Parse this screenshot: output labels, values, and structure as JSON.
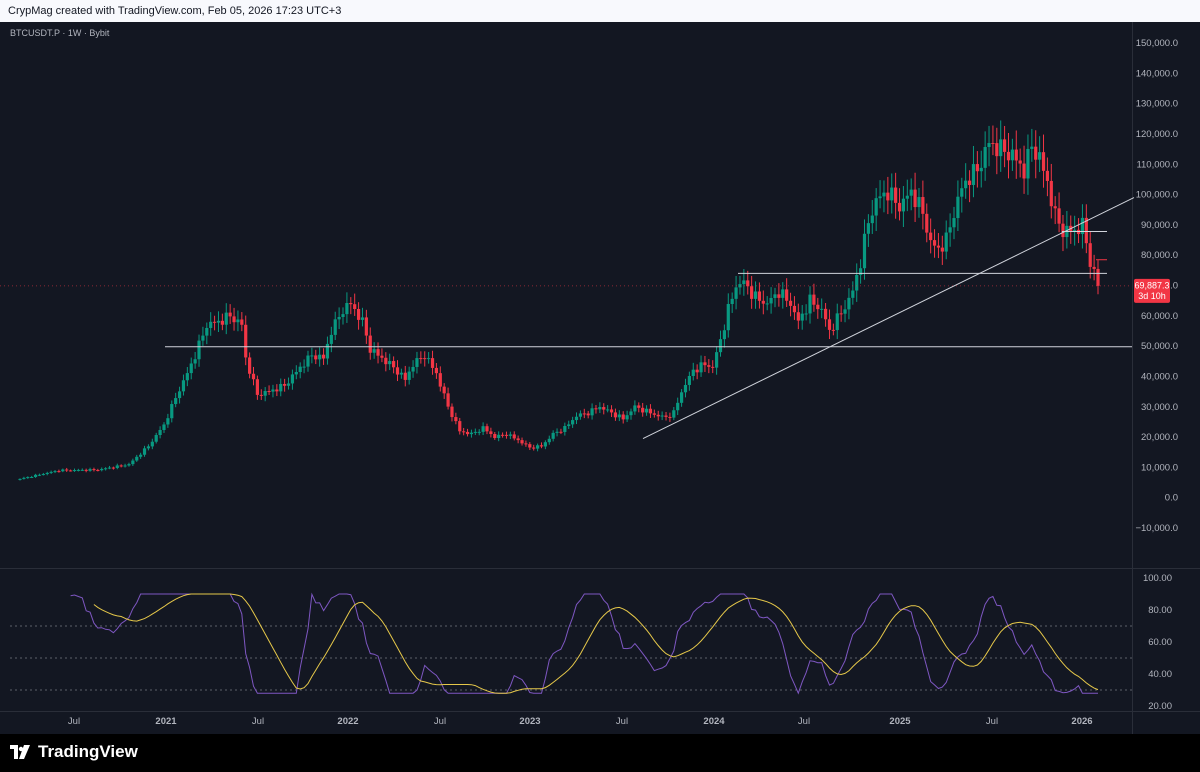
{
  "header": {
    "text": "CrypMag created with TradingView.com, Feb 05, 2026 17:23 UTC+3"
  },
  "symbol": "BTCUSDT.P · 1W · Bybit",
  "footer": {
    "brand": "TradingView"
  },
  "colors": {
    "bg": "#131722",
    "up": "#089981",
    "down": "#f23645",
    "grid": "#2a2e39",
    "text": "#b2b5be",
    "rsi": "#7e57c2",
    "rsi_ma": "#e6c84a",
    "trendline": "#d1d4dc"
  },
  "chart_data": [
    {
      "type": "candlestick",
      "y_axis": {
        "ticks": [
          "150,000.0",
          "140,000.0",
          "130,000.0",
          "120,000.0",
          "110,000.0",
          "100,000.0",
          "90,000.0",
          "80,000.0",
          "70,000.0",
          "60,000.0",
          "50,000.0",
          "40,000.0",
          "30,000.0",
          "20,000.0",
          "10,000.0",
          "0.0",
          "−10,000.0"
        ]
      },
      "x_axis": {
        "ticks": [
          "Jul",
          "2021",
          "Jul",
          "2022",
          "Jul",
          "2023",
          "Jul",
          "2024",
          "Jul",
          "2025",
          "Jul",
          "2026"
        ]
      },
      "ylim": [
        -14000,
        153000
      ],
      "price_label": {
        "value": "69,887.3",
        "countdown": "3d 10h",
        "price": 69887.3
      },
      "lines": [
        {
          "name": "horizontal-50k",
          "price": 49800
        },
        {
          "name": "horizontal-74k",
          "price": 74000
        },
        {
          "name": "horizontal-87k",
          "price": 87800
        },
        {
          "name": "horizontal-79k",
          "price": 78500
        },
        {
          "name": "trendline"
        }
      ],
      "price_waypoints": [
        [
          0,
          6200
        ],
        [
          10,
          9000
        ],
        [
          20,
          9200
        ],
        [
          28,
          11000
        ],
        [
          33,
          17000
        ],
        [
          37,
          24000
        ],
        [
          40,
          33000
        ],
        [
          43,
          41000
        ],
        [
          45,
          47000
        ],
        [
          48,
          57000
        ],
        [
          51,
          58000
        ],
        [
          54,
          60000
        ],
        [
          57,
          57000
        ],
        [
          58,
          46000
        ],
        [
          61,
          34000
        ],
        [
          64,
          35000
        ],
        [
          68,
          37000
        ],
        [
          72,
          43000
        ],
        [
          75,
          47000
        ],
        [
          78,
          46000
        ],
        [
          80,
          55000
        ],
        [
          83,
          62000
        ],
        [
          85,
          64000
        ],
        [
          88,
          58000
        ],
        [
          90,
          49000
        ],
        [
          93,
          46000
        ],
        [
          96,
          43000
        ],
        [
          99,
          39000
        ],
        [
          101,
          44000
        ],
        [
          104,
          47000
        ],
        [
          107,
          41000
        ],
        [
          110,
          30000
        ],
        [
          113,
          22000
        ],
        [
          116,
          21000
        ],
        [
          119,
          23000
        ],
        [
          122,
          20000
        ],
        [
          125,
          21000
        ],
        [
          128,
          19000
        ],
        [
          131,
          16500
        ],
        [
          134,
          17000
        ],
        [
          137,
          21000
        ],
        [
          140,
          23000
        ],
        [
          143,
          27000
        ],
        [
          146,
          28000
        ],
        [
          149,
          30000
        ],
        [
          152,
          28000
        ],
        [
          155,
          26000
        ],
        [
          158,
          30000
        ],
        [
          160,
          29000
        ],
        [
          164,
          27000
        ],
        [
          166,
          26500
        ],
        [
          168,
          28000
        ],
        [
          170,
          35000
        ],
        [
          173,
          42000
        ],
        [
          176,
          44000
        ],
        [
          178,
          43000
        ],
        [
          180,
          52000
        ],
        [
          182,
          62000
        ],
        [
          184,
          70000
        ],
        [
          186,
          71000
        ],
        [
          189,
          66000
        ],
        [
          192,
          64000
        ],
        [
          195,
          68000
        ],
        [
          198,
          64000
        ],
        [
          200,
          58000
        ],
        [
          203,
          65000
        ],
        [
          206,
          62000
        ],
        [
          208,
          55000
        ],
        [
          210,
          59000
        ],
        [
          212,
          63000
        ],
        [
          214,
          68000
        ],
        [
          216,
          78000
        ],
        [
          218,
          91000
        ],
        [
          220,
          98000
        ],
        [
          223,
          101000
        ],
        [
          226,
          96000
        ],
        [
          229,
          101000
        ],
        [
          232,
          94000
        ],
        [
          234,
          84000
        ],
        [
          236,
          82000
        ],
        [
          238,
          85000
        ],
        [
          240,
          94000
        ],
        [
          242,
          102000
        ],
        [
          244,
          106000
        ],
        [
          246,
          108000
        ],
        [
          249,
          117000
        ],
        [
          252,
          115000
        ],
        [
          255,
          113000
        ],
        [
          258,
          108000
        ],
        [
          260,
          116000
        ],
        [
          262,
          112000
        ],
        [
          264,
          104000
        ],
        [
          266,
          93000
        ],
        [
          268,
          88000
        ],
        [
          271,
          88000
        ],
        [
          273,
          90000
        ],
        [
          275,
          78000
        ],
        [
          277,
          69887
        ]
      ],
      "rsi": {
        "ticks": [
          "100.00",
          "80.00",
          "60.00",
          "40.00",
          "20.00"
        ],
        "levels": [
          70,
          50,
          30
        ]
      }
    }
  ]
}
